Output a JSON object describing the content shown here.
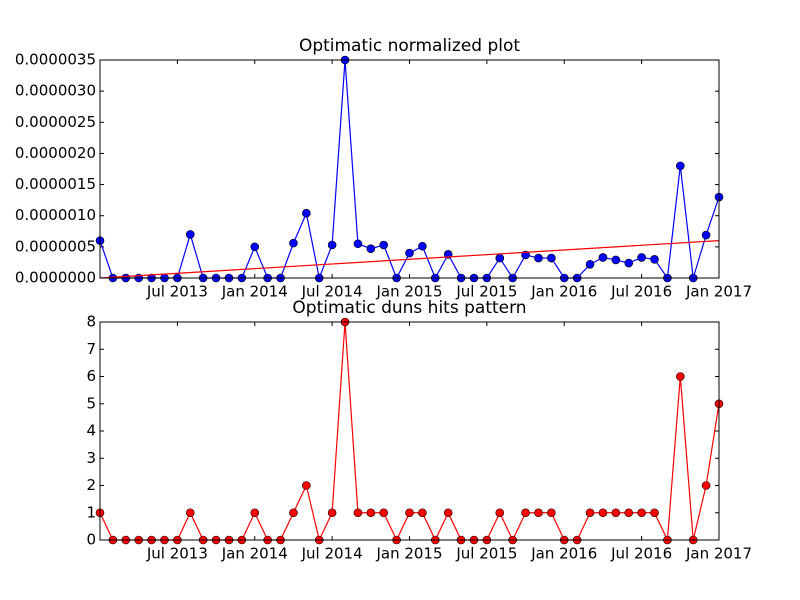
{
  "chart_data": [
    {
      "type": "line",
      "title": "Optimatic normalized plot",
      "x": [
        "2013-01",
        "2013-02",
        "2013-03",
        "2013-04",
        "2013-05",
        "2013-06",
        "2013-07",
        "2013-08",
        "2013-09",
        "2013-10",
        "2013-11",
        "2013-12",
        "2014-01",
        "2014-02",
        "2014-03",
        "2014-04",
        "2014-05",
        "2014-06",
        "2014-07",
        "2014-08",
        "2014-09",
        "2014-10",
        "2014-11",
        "2014-12",
        "2015-01",
        "2015-02",
        "2015-03",
        "2015-04",
        "2015-05",
        "2015-06",
        "2015-07",
        "2015-08",
        "2015-09",
        "2015-10",
        "2015-11",
        "2015-12",
        "2016-01",
        "2016-02",
        "2016-03",
        "2016-04",
        "2016-05",
        "2016-06",
        "2016-07",
        "2016-08",
        "2016-09",
        "2016-10",
        "2016-11",
        "2016-12",
        "2017-01"
      ],
      "series": [
        {
          "color": "#0000ff",
          "values": [
            6e-07,
            0,
            0,
            0,
            0,
            0,
            0,
            7e-07,
            0,
            0,
            0,
            0,
            5e-07,
            0,
            0,
            5.6e-07,
            1.04e-06,
            0,
            5.3e-07,
            3.5e-06,
            5.5e-07,
            4.7e-07,
            5.3e-07,
            0,
            4e-07,
            5.1e-07,
            0,
            3.8e-07,
            0,
            0,
            0,
            3.2e-07,
            0,
            3.7e-07,
            3.2e-07,
            3.2e-07,
            0,
            0,
            2.2e-07,
            3.3e-07,
            2.9e-07,
            2.4e-07,
            3.3e-07,
            3e-07,
            0,
            1.8e-06,
            0,
            6.9e-07,
            1.3e-06
          ]
        }
      ],
      "trend": {
        "color": "#ff0000",
        "x": [
          "2013-01",
          "2017-01"
        ],
        "values": [
          0,
          6e-07
        ]
      },
      "xlim": [
        "2013-01",
        "2017-01"
      ],
      "xticks": [
        {
          "value": "2013-07",
          "label": "Jul 2013"
        },
        {
          "value": "2014-01",
          "label": "Jan 2014"
        },
        {
          "value": "2014-07",
          "label": "Jul 2014"
        },
        {
          "value": "2015-01",
          "label": "Jan 2015"
        },
        {
          "value": "2015-07",
          "label": "Jul 2015"
        },
        {
          "value": "2016-01",
          "label": "Jan 2016"
        },
        {
          "value": "2016-07",
          "label": "Jul 2016"
        },
        {
          "value": "2017-01",
          "label": "Jan 2017"
        }
      ],
      "ylim": [
        0,
        3.5e-06
      ],
      "yticks": [
        {
          "value": 0,
          "label": "0.0000000"
        },
        {
          "value": 5e-07,
          "label": "0.0000005"
        },
        {
          "value": 1e-06,
          "label": "0.0000010"
        },
        {
          "value": 1.5e-06,
          "label": "0.0000015"
        },
        {
          "value": 2e-06,
          "label": "0.0000020"
        },
        {
          "value": 2.5e-06,
          "label": "0.0000025"
        },
        {
          "value": 3e-06,
          "label": "0.0000030"
        },
        {
          "value": 3.5e-06,
          "label": "0.0000035"
        }
      ]
    },
    {
      "type": "line",
      "title": "Optimatic duns hits pattern",
      "x": [
        "2013-01",
        "2013-02",
        "2013-03",
        "2013-04",
        "2013-05",
        "2013-06",
        "2013-07",
        "2013-08",
        "2013-09",
        "2013-10",
        "2013-11",
        "2013-12",
        "2014-01",
        "2014-02",
        "2014-03",
        "2014-04",
        "2014-05",
        "2014-06",
        "2014-07",
        "2014-08",
        "2014-09",
        "2014-10",
        "2014-11",
        "2014-12",
        "2015-01",
        "2015-02",
        "2015-03",
        "2015-04",
        "2015-05",
        "2015-06",
        "2015-07",
        "2015-08",
        "2015-09",
        "2015-10",
        "2015-11",
        "2015-12",
        "2016-01",
        "2016-02",
        "2016-03",
        "2016-04",
        "2016-05",
        "2016-06",
        "2016-07",
        "2016-08",
        "2016-09",
        "2016-10",
        "2016-11",
        "2016-12",
        "2017-01"
      ],
      "series": [
        {
          "color": "#ff0000",
          "values": [
            1,
            0,
            0,
            0,
            0,
            0,
            0,
            1,
            0,
            0,
            0,
            0,
            1,
            0,
            0,
            1,
            2,
            0,
            1,
            8,
            1,
            1,
            1,
            0,
            1,
            1,
            0,
            1,
            0,
            0,
            0,
            1,
            0,
            1,
            1,
            1,
            0,
            0,
            1,
            1,
            1,
            1,
            1,
            1,
            0,
            6,
            0,
            2,
            5
          ]
        }
      ],
      "xlim": [
        "2013-01",
        "2017-01"
      ],
      "xticks": [
        {
          "value": "2013-07",
          "label": "Jul 2013"
        },
        {
          "value": "2014-01",
          "label": "Jan 2014"
        },
        {
          "value": "2014-07",
          "label": "Jul 2014"
        },
        {
          "value": "2015-01",
          "label": "Jan 2015"
        },
        {
          "value": "2015-07",
          "label": "Jul 2015"
        },
        {
          "value": "2016-01",
          "label": "Jan 2016"
        },
        {
          "value": "2016-07",
          "label": "Jul 2016"
        },
        {
          "value": "2017-01",
          "label": "Jan 2017"
        }
      ],
      "ylim": [
        0,
        8
      ],
      "yticks": [
        0,
        1,
        2,
        3,
        4,
        5,
        6,
        7,
        8
      ]
    }
  ]
}
